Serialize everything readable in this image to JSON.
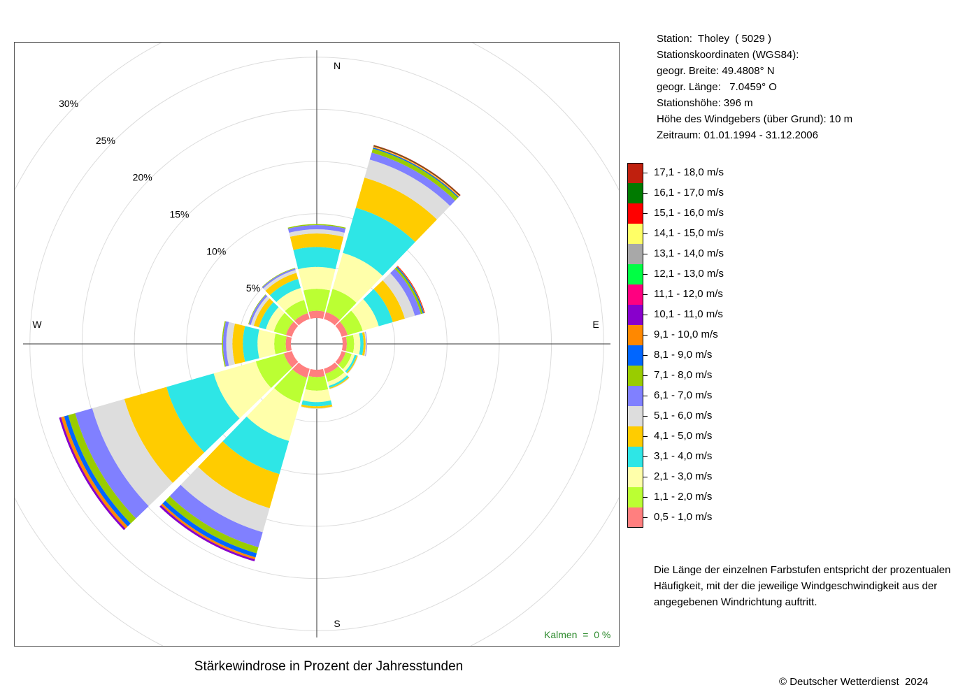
{
  "station_info": {
    "line1": "Station:  Tholey  ( 5029 )",
    "line2": "Stationskoordinaten (WGS84):",
    "line3": "geogr. Breite: 49.4808° N",
    "line4": "geogr. Länge:   7.0459° O",
    "line5": "Stationshöhe: 396 m",
    "line6": "Höhe des Windgebers (über Grund): 10 m",
    "line7": "Zeitraum: 01.01.1994 - 31.12.2006"
  },
  "legend": [
    {
      "label": "17,1 - 18,0 m/s",
      "color": "#c0200e"
    },
    {
      "label": "16,1 - 17,0 m/s",
      "color": "#007a00"
    },
    {
      "label": "15,1 - 16,0 m/s",
      "color": "#ff0000"
    },
    {
      "label": "14,1 - 15,0 m/s",
      "color": "#ffff66"
    },
    {
      "label": "13,1 - 14,0 m/s",
      "color": "#a8a8a8"
    },
    {
      "label": "12,1 - 13,0 m/s",
      "color": "#00ff44"
    },
    {
      "label": "11,1 - 12,0 m/s",
      "color": "#ff0080"
    },
    {
      "label": "10,1 - 11,0 m/s",
      "color": "#8800cc"
    },
    {
      "label": "9,1 - 10,0 m/s",
      "color": "#ff8800"
    },
    {
      "label": "8,1 - 9,0 m/s",
      "color": "#0066ff"
    },
    {
      "label": "7,1 - 8,0 m/s",
      "color": "#99cc00"
    },
    {
      "label": "6,1 - 7,0 m/s",
      "color": "#8080ff"
    },
    {
      "label": "5,1 - 6,0 m/s",
      "color": "#dddddd"
    },
    {
      "label": "4,1 - 5,0 m/s",
      "color": "#ffcc00"
    },
    {
      "label": "3,1 - 4,0 m/s",
      "color": "#2ee6e6"
    },
    {
      "label": "2,1 - 3,0 m/s",
      "color": "#ffffaa"
    },
    {
      "label": "1,1 - 2,0 m/s",
      "color": "#bbff33"
    },
    {
      "label": "0,5 - 1,0 m/s",
      "color": "#ff7f7f"
    }
  ],
  "note": "Die Länge der einzelnen Farbstufen entspricht der prozentualen Häufigkeit, mit der die jeweilige Windgeschwindigkeit aus der angegebenen Windrichtung auftritt.",
  "calm": "Kalmen  =  0 %",
  "copyright": "© Deutscher Wetterdienst  2024",
  "chart_data": {
    "type": "wind-rose",
    "title": "Stärkewindrose in Prozent der Jahresstunden",
    "compass": {
      "north": "N",
      "east": "E",
      "south": "S",
      "west": "W"
    },
    "ring_labels": [
      "5%",
      "10%",
      "15%",
      "20%",
      "25%",
      "30%"
    ],
    "ring_values": [
      5,
      10,
      15,
      20,
      25,
      30
    ],
    "directions_deg": [
      0,
      30,
      60,
      90,
      120,
      150,
      180,
      210,
      240,
      270,
      300,
      330
    ],
    "speed_classes": [
      "0,5 - 1,0 m/s",
      "1,1 - 2,0 m/s",
      "2,1 - 3,0 m/s",
      "3,1 - 4,0 m/s",
      "4,1 - 5,0 m/s",
      "5,1 - 6,0 m/s",
      "6,1 - 7,0 m/s",
      "7,1 - 8,0 m/s",
      "8,1 - 9,0 m/s",
      "9,1 - 10,0 m/s",
      "10,1 - 11,0 m/s",
      "11,1 - 12,0 m/s",
      "12,1 - 13,0 m/s",
      "13,1 - 14,0 m/s",
      "14,1 - 15,0 m/s",
      "15,1 - 16,0 m/s",
      "16,1 - 17,0 m/s",
      "17,1 - 18,0 m/s"
    ],
    "colors": [
      "#ff7f7f",
      "#bbff33",
      "#ffffaa",
      "#2ee6e6",
      "#ffcc00",
      "#dddddd",
      "#8080ff",
      "#99cc00",
      "#0066ff",
      "#ff8800",
      "#8800cc",
      "#ff0080",
      "#00ff44",
      "#a8a8a8",
      "#ffff66",
      "#ff0000",
      "#007a00",
      "#c0200e"
    ],
    "frequencies_percent": [
      [
        0.7,
        2.1,
        2.1,
        1.9,
        1.3,
        0.4,
        0.4,
        0.1,
        0,
        0,
        0,
        0,
        0,
        0,
        0,
        0,
        0,
        0
      ],
      [
        0.7,
        2.3,
        3.6,
        4.5,
        3.0,
        1.8,
        0.7,
        0.4,
        0.1,
        0.05,
        0,
        0,
        0,
        0,
        0.05,
        0.05,
        0.05,
        0.05
      ],
      [
        0.6,
        1.5,
        1.6,
        1.4,
        1.2,
        1.0,
        0.6,
        0.2,
        0.1,
        0.05,
        0,
        0,
        0,
        0,
        0,
        0.05,
        0,
        0
      ],
      [
        0.4,
        0.7,
        0.6,
        0.3,
        0.2,
        0.1,
        0.05,
        0,
        0,
        0,
        0,
        0,
        0,
        0,
        0,
        0,
        0,
        0
      ],
      [
        0.4,
        0.6,
        0.3,
        0.2,
        0.1,
        0.05,
        0,
        0,
        0,
        0,
        0,
        0,
        0,
        0,
        0,
        0,
        0,
        0
      ],
      [
        0.5,
        0.8,
        0.4,
        0.2,
        0.1,
        0.05,
        0,
        0,
        0,
        0,
        0,
        0,
        0,
        0,
        0,
        0,
        0,
        0
      ],
      [
        0.7,
        1.3,
        1.1,
        0.4,
        0.2,
        0.05,
        0,
        0,
        0,
        0,
        0,
        0,
        0,
        0,
        0,
        0,
        0,
        0
      ],
      [
        0.9,
        2.5,
        3.8,
        3.3,
        3.4,
        2.4,
        1.5,
        0.6,
        0.4,
        0.2,
        0.2,
        0,
        0,
        0,
        0,
        0,
        0,
        0
      ],
      [
        0.8,
        2.8,
        4.2,
        4.7,
        4.2,
        3.2,
        1.7,
        0.7,
        0.4,
        0.3,
        0.2,
        0,
        0,
        0,
        0,
        0,
        0,
        0
      ],
      [
        0.5,
        1.1,
        1.6,
        1.4,
        1.0,
        0.6,
        0.3,
        0.1,
        0,
        0,
        0,
        0,
        0,
        0,
        0,
        0,
        0,
        0
      ],
      [
        0.6,
        1.2,
        0.8,
        0.7,
        0.5,
        0.3,
        0.2,
        0.05,
        0,
        0,
        0,
        0,
        0,
        0,
        0,
        0,
        0,
        0
      ],
      [
        0.6,
        1.3,
        1.2,
        0.9,
        0.6,
        0.3,
        0.15,
        0.05,
        0,
        0,
        0,
        0,
        0,
        0,
        0,
        0,
        0,
        0
      ]
    ],
    "grid": true,
    "legend_position": "right"
  }
}
